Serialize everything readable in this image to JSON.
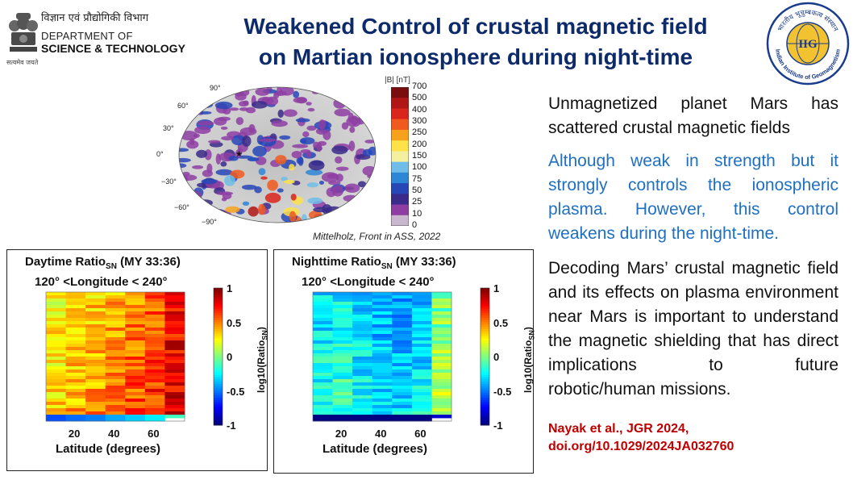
{
  "header": {
    "title_line1": "Weakened Control of crustal magnetic field",
    "title_line2": "on Martian ionosphere during night-time",
    "dst_hindi": "विज्ञान एवं प्रौद्योगिकी विभाग",
    "dst_line1": "DEPARTMENT OF",
    "dst_line2": "SCIENCE & TECHNOLOGY",
    "dst_motto": "सत्यमेव जयते",
    "iig_abbr": "IIG",
    "iig_name": "Indian Institute of Geomagnetism",
    "iig_hindi": "भारतीय भूचुम्बकत्व संस्थान"
  },
  "map": {
    "unit_label": "|B| [nT]",
    "colorbar_ticks": [
      "700",
      "500",
      "400",
      "300",
      "250",
      "200",
      "150",
      "100",
      "75",
      "50",
      "25",
      "10",
      "0"
    ],
    "lat_labels": [
      "90°",
      "60°",
      "30°",
      "0°",
      "−30°",
      "−60°",
      "−90°"
    ],
    "caption": "Mittelholz, Front in ASS, 2022"
  },
  "text": {
    "p1": "Unmagnetized planet Mars has scattered crustal magnetic fields",
    "p2": "Although weak in strength but it strongly controls the ionospheric plasma. However, this control weakens during the night-time.",
    "p3_main": "Decoding Mars’ crustal magnetic field and its effects on plasma environment near Mars is important to understand the magnetic shielding that has direct implications to future",
    "p3_last": "robotic/human missions.",
    "ref1": "Nayak et al., JGR 2024,",
    "ref2": "doi.org/10.1029/2024JA032760"
  },
  "colors": {
    "title": "#0d2a6b",
    "blue_text": "#1f6fc2",
    "ref": "#c00000"
  },
  "chart_data": [
    {
      "type": "heatmap",
      "title": "Daytime Ratio",
      "title_sub": "SN",
      "title_suffix": " (MY 33:36)",
      "subtitle": "120° <Longitude < 240°",
      "xlabel": "Latitude (degrees)",
      "xticks": [
        "20",
        "40",
        "60"
      ],
      "colorbar_label": "log10(Ratio",
      "colorbar_sub": "SN",
      "colorbar_ticks": [
        "1",
        "0.5",
        "0",
        "-0.5",
        "-1"
      ],
      "clim": [
        -1,
        1
      ],
      "x": [
        10,
        20,
        30,
        40,
        50,
        60,
        70
      ],
      "column_means": [
        0.3,
        0.36,
        0.4,
        0.48,
        0.55,
        0.62,
        0.78
      ]
    },
    {
      "type": "heatmap",
      "title": "Nighttime Ratio",
      "title_sub": "SN",
      "title_suffix": " (MY 33:36)",
      "subtitle": "120° <Longitude < 240°",
      "xlabel": "Latitude (degrees)",
      "xticks": [
        "20",
        "40",
        "60"
      ],
      "colorbar_label": "log10(Ratio",
      "colorbar_sub": "SN",
      "colorbar_ticks": [
        "1",
        "0.5",
        "0",
        "-0.5",
        "-1"
      ],
      "clim": [
        -1,
        1
      ],
      "x": [
        10,
        20,
        30,
        40,
        50,
        60,
        70
      ],
      "column_means": [
        -0.25,
        -0.2,
        -0.3,
        -0.35,
        -0.35,
        -0.3,
        0.05
      ]
    }
  ]
}
